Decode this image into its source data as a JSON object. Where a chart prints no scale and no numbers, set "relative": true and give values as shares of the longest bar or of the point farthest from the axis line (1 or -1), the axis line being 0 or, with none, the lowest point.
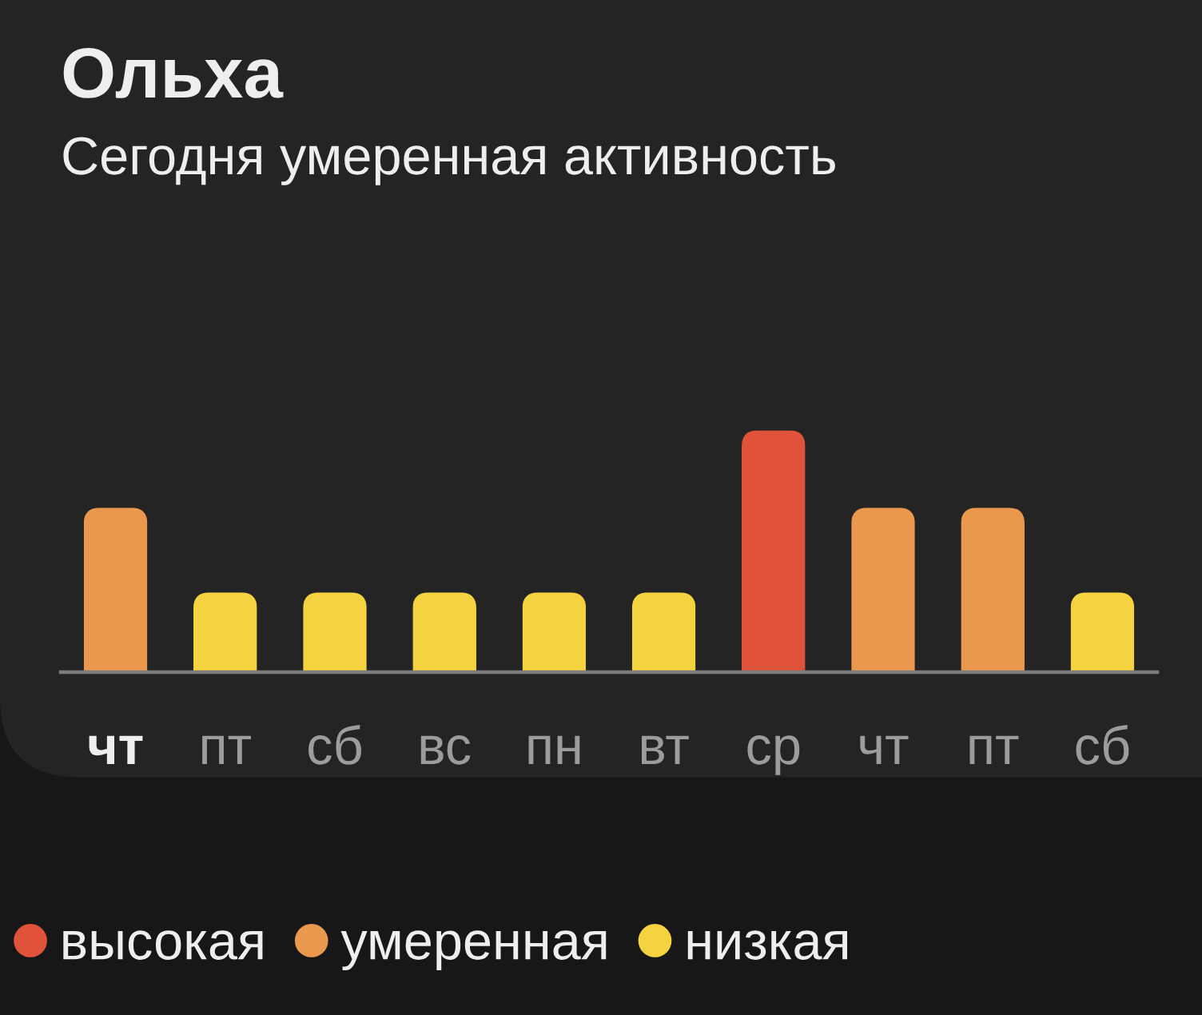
{
  "chart_data": {
    "type": "bar",
    "title": "Ольха",
    "subtitle": "Сегодня умеренная активность",
    "categories": [
      "чт",
      "пт",
      "сб",
      "вс",
      "пн",
      "вт",
      "ср",
      "чт",
      "пт",
      "сб"
    ],
    "series": [
      {
        "name": "высокая",
        "color": "#e0523a",
        "values": [
          null,
          null,
          null,
          null,
          null,
          null,
          1,
          null,
          null,
          null
        ]
      },
      {
        "name": "умеренная",
        "color": "#ea984e",
        "values": [
          0.68,
          null,
          null,
          null,
          null,
          null,
          null,
          0.68,
          0.68,
          null
        ]
      },
      {
        "name": "низкая",
        "color": "#f5d240",
        "values": [
          null,
          0.33,
          0.33,
          0.33,
          0.33,
          0.33,
          null,
          null,
          null,
          0.33
        ]
      }
    ],
    "stacked": true,
    "relative": true,
    "legend": "bottom"
  }
}
